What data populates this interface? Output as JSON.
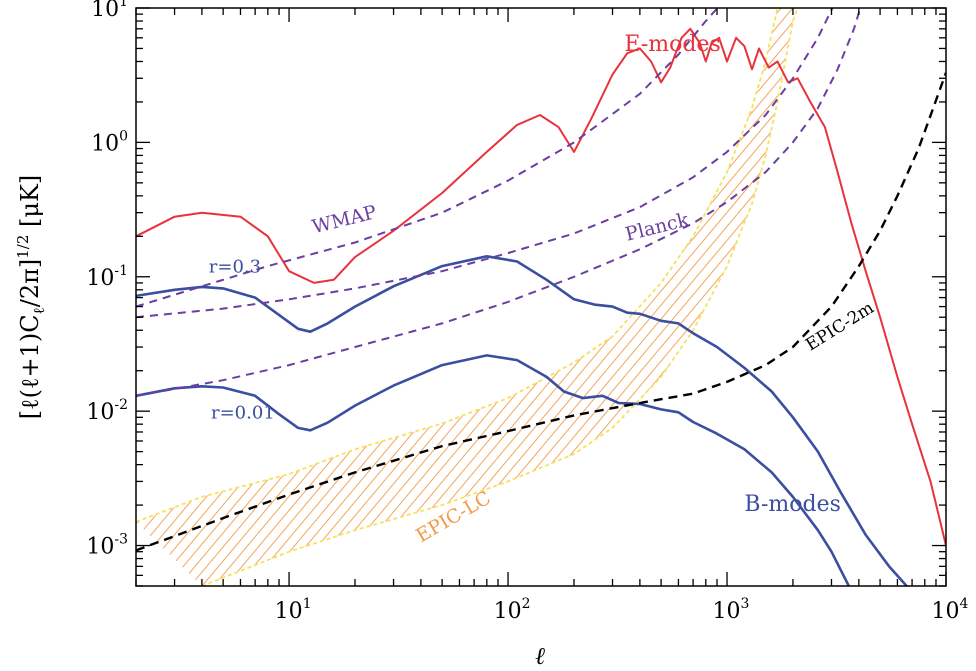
{
  "chart_data": {
    "type": "line",
    "xscale": "log",
    "yscale": "log",
    "xlim": [
      2,
      10000
    ],
    "ylim": [
      0.0005,
      10
    ],
    "xlabel": "ℓ",
    "ylabel_parts": [
      "[ℓ(ℓ+1)C",
      "ℓ",
      "/2π]",
      "1/2",
      " [μK]"
    ],
    "x_ticks": [
      {
        "value": 10,
        "base": "10",
        "exp": "1"
      },
      {
        "value": 100,
        "base": "10",
        "exp": "2"
      },
      {
        "value": 1000,
        "base": "10",
        "exp": "3"
      },
      {
        "value": 10000,
        "base": "10",
        "exp": "4"
      }
    ],
    "y_ticks": [
      {
        "value": 10,
        "base": "10",
        "exp": "1"
      },
      {
        "value": 1,
        "base": "10",
        "exp": "0"
      },
      {
        "value": 0.1,
        "base": "10",
        "exp": "-1"
      },
      {
        "value": 0.01,
        "base": "10",
        "exp": "-2"
      },
      {
        "value": 0.001,
        "base": "10",
        "exp": "-3"
      }
    ],
    "colors": {
      "e_modes": "#e8323c",
      "b_modes": "#3a4fa0",
      "wmap_planck": "#6a3fa0",
      "epic_2m": "#000000",
      "epic_lc_fill": "#f39a4a",
      "epic_lc_edge": "#f5e25a"
    },
    "series": [
      {
        "name": "E-modes",
        "style": "solid",
        "points": [
          [
            2,
            0.2
          ],
          [
            3,
            0.28
          ],
          [
            4,
            0.3
          ],
          [
            6,
            0.28
          ],
          [
            8,
            0.2
          ],
          [
            10,
            0.11
          ],
          [
            13,
            0.09
          ],
          [
            16,
            0.095
          ],
          [
            20,
            0.14
          ],
          [
            30,
            0.22
          ],
          [
            50,
            0.42
          ],
          [
            80,
            0.85
          ],
          [
            110,
            1.35
          ],
          [
            140,
            1.6
          ],
          [
            170,
            1.3
          ],
          [
            200,
            0.85
          ],
          [
            240,
            1.5
          ],
          [
            300,
            3.2
          ],
          [
            350,
            4.6
          ],
          [
            400,
            5.0
          ],
          [
            450,
            4.0
          ],
          [
            500,
            2.8
          ],
          [
            550,
            3.6
          ],
          [
            620,
            6.0
          ],
          [
            680,
            7.0
          ],
          [
            750,
            5.5
          ],
          [
            800,
            4.0
          ],
          [
            850,
            5.5
          ],
          [
            920,
            6.0
          ],
          [
            1000,
            4.0
          ],
          [
            1100,
            6.0
          ],
          [
            1200,
            5.2
          ],
          [
            1300,
            3.5
          ],
          [
            1400,
            5.0
          ],
          [
            1550,
            3.6
          ],
          [
            1700,
            4.0
          ],
          [
            1900,
            2.8
          ],
          [
            2100,
            3.0
          ],
          [
            2400,
            2.0
          ],
          [
            2800,
            1.3
          ],
          [
            3200,
            0.6
          ],
          [
            3700,
            0.25
          ],
          [
            4300,
            0.11
          ],
          [
            5000,
            0.05
          ],
          [
            6000,
            0.018
          ],
          [
            7000,
            0.008
          ],
          [
            8500,
            0.003
          ],
          [
            10000,
            0.001
          ]
        ]
      },
      {
        "name": "r=0.3",
        "style": "solid",
        "points": [
          [
            2,
            0.072
          ],
          [
            3,
            0.08
          ],
          [
            4,
            0.084
          ],
          [
            5,
            0.082
          ],
          [
            7,
            0.07
          ],
          [
            9,
            0.052
          ],
          [
            11,
            0.041
          ],
          [
            12.5,
            0.039
          ],
          [
            15,
            0.045
          ],
          [
            20,
            0.06
          ],
          [
            30,
            0.085
          ],
          [
            50,
            0.12
          ],
          [
            80,
            0.142
          ],
          [
            110,
            0.13
          ],
          [
            150,
            0.095
          ],
          [
            200,
            0.068
          ],
          [
            250,
            0.062
          ],
          [
            300,
            0.06
          ],
          [
            350,
            0.054
          ],
          [
            400,
            0.053
          ],
          [
            500,
            0.047
          ],
          [
            600,
            0.045
          ],
          [
            700,
            0.038
          ],
          [
            900,
            0.03
          ],
          [
            1200,
            0.021
          ],
          [
            1600,
            0.014
          ],
          [
            2000,
            0.009
          ],
          [
            2600,
            0.005
          ],
          [
            3300,
            0.0025
          ],
          [
            4300,
            0.0012
          ],
          [
            5500,
            0.0007
          ],
          [
            7000,
            0.00045
          ]
        ]
      },
      {
        "name": "r=0.01",
        "style": "solid",
        "points": [
          [
            2,
            0.013
          ],
          [
            3,
            0.0148
          ],
          [
            4,
            0.0153
          ],
          [
            5,
            0.015
          ],
          [
            7,
            0.013
          ],
          [
            9,
            0.0095
          ],
          [
            11,
            0.0075
          ],
          [
            12.5,
            0.0072
          ],
          [
            15,
            0.0082
          ],
          [
            20,
            0.011
          ],
          [
            30,
            0.0155
          ],
          [
            50,
            0.022
          ],
          [
            80,
            0.026
          ],
          [
            110,
            0.024
          ],
          [
            150,
            0.018
          ],
          [
            180,
            0.014
          ],
          [
            220,
            0.0125
          ],
          [
            270,
            0.013
          ],
          [
            320,
            0.0115
          ],
          [
            400,
            0.0113
          ],
          [
            500,
            0.0103
          ],
          [
            600,
            0.0098
          ],
          [
            700,
            0.0083
          ],
          [
            900,
            0.0068
          ],
          [
            1200,
            0.0052
          ],
          [
            1600,
            0.0035
          ],
          [
            2000,
            0.0023
          ],
          [
            2600,
            0.0013
          ],
          [
            3000,
            0.0009
          ],
          [
            3600,
            0.0005
          ]
        ]
      },
      {
        "name": "WMAP",
        "style": "dashed",
        "points": [
          [
            2,
            0.06
          ],
          [
            4,
            0.085
          ],
          [
            8,
            0.12
          ],
          [
            20,
            0.18
          ],
          [
            50,
            0.3
          ],
          [
            100,
            0.52
          ],
          [
            200,
            1.0
          ],
          [
            400,
            2.3
          ],
          [
            600,
            4.5
          ],
          [
            800,
            8.0
          ],
          [
            1000,
            12.0
          ]
        ]
      },
      {
        "name": "Planck",
        "style": "dashed",
        "points": [
          [
            2,
            0.05
          ],
          [
            5,
            0.058
          ],
          [
            10,
            0.068
          ],
          [
            20,
            0.082
          ],
          [
            50,
            0.11
          ],
          [
            100,
            0.15
          ],
          [
            200,
            0.21
          ],
          [
            400,
            0.33
          ],
          [
            700,
            0.55
          ],
          [
            1000,
            0.85
          ],
          [
            1500,
            1.6
          ],
          [
            2000,
            3.0
          ],
          [
            2600,
            6.0
          ],
          [
            3200,
            12.0
          ]
        ]
      },
      {
        "name": "Planck-lower",
        "style": "dashed",
        "points": [
          [
            2,
            0.013
          ],
          [
            5,
            0.017
          ],
          [
            10,
            0.022
          ],
          [
            20,
            0.03
          ],
          [
            50,
            0.045
          ],
          [
            100,
            0.065
          ],
          [
            200,
            0.1
          ],
          [
            400,
            0.16
          ],
          [
            700,
            0.25
          ],
          [
            1000,
            0.36
          ],
          [
            1500,
            0.6
          ],
          [
            2000,
            1.0
          ],
          [
            2600,
            1.8
          ],
          [
            3200,
            3.5
          ],
          [
            3800,
            7.0
          ],
          [
            4200,
            12.0
          ]
        ]
      },
      {
        "name": "EPIC-2m",
        "style": "dashed",
        "points": [
          [
            2,
            0.00092
          ],
          [
            5,
            0.0016
          ],
          [
            10,
            0.0024
          ],
          [
            20,
            0.0035
          ],
          [
            50,
            0.0055
          ],
          [
            100,
            0.0071
          ],
          [
            200,
            0.0093
          ],
          [
            400,
            0.0115
          ],
          [
            700,
            0.0135
          ],
          [
            1000,
            0.0165
          ],
          [
            1500,
            0.022
          ],
          [
            2000,
            0.03
          ],
          [
            3000,
            0.06
          ],
          [
            4000,
            0.12
          ],
          [
            5000,
            0.22
          ],
          [
            6000,
            0.4
          ],
          [
            7500,
            0.9
          ],
          [
            10000,
            3.3
          ]
        ]
      }
    ],
    "epic_lc_band": {
      "name": "EPIC-LC",
      "upper": [
        [
          2,
          0.0015
        ],
        [
          4,
          0.0023
        ],
        [
          10,
          0.0034
        ],
        [
          20,
          0.0052
        ],
        [
          50,
          0.0081
        ],
        [
          100,
          0.0125
        ],
        [
          200,
          0.023
        ],
        [
          300,
          0.036
        ],
        [
          500,
          0.09
        ],
        [
          700,
          0.2
        ],
        [
          1000,
          0.6
        ],
        [
          1300,
          1.8
        ],
        [
          1500,
          4.0
        ],
        [
          1700,
          10.0
        ]
      ],
      "lower": [
        [
          4,
          0.0005
        ],
        [
          10,
          0.0009
        ],
        [
          20,
          0.0013
        ],
        [
          50,
          0.002
        ],
        [
          100,
          0.003
        ],
        [
          200,
          0.0048
        ],
        [
          300,
          0.0075
        ],
        [
          500,
          0.018
        ],
        [
          700,
          0.04
        ],
        [
          1000,
          0.12
        ],
        [
          1300,
          0.35
        ],
        [
          1500,
          0.8
        ],
        [
          1700,
          2.0
        ],
        [
          2000,
          8.0
        ],
        [
          2100,
          10.0
        ]
      ]
    },
    "annotations": [
      {
        "text": "E-modes",
        "x": 340,
        "y": 4.8,
        "color": "#e8323c",
        "rotate": 0,
        "size": 22
      },
      {
        "text": "WMAP",
        "x": 13,
        "y": 0.21,
        "color": "#6a3fa0",
        "rotate": -14,
        "size": 19
      },
      {
        "text": "Planck",
        "x": 350,
        "y": 0.185,
        "color": "#6a3fa0",
        "rotate": -14,
        "size": 19
      },
      {
        "text": "r=0.3",
        "x": 4.3,
        "y": 0.108,
        "color": "#3a4fa0",
        "rotate": 0,
        "size": 18
      },
      {
        "text": "r=0.01",
        "x": 4.4,
        "y": 0.0088,
        "color": "#3a4fa0",
        "rotate": 0,
        "size": 18
      },
      {
        "text": "EPIC-2m",
        "x": 2400,
        "y": 0.028,
        "color": "#000000",
        "rotate": -32,
        "size": 17
      },
      {
        "text": "B-modes",
        "x": 1200,
        "y": 0.0018,
        "color": "#3a4fa0",
        "rotate": 0,
        "size": 22
      },
      {
        "text": "EPIC-LC",
        "x": 40,
        "y": 0.00105,
        "color": "#f39a4a",
        "rotate": -30,
        "size": 19
      }
    ]
  }
}
